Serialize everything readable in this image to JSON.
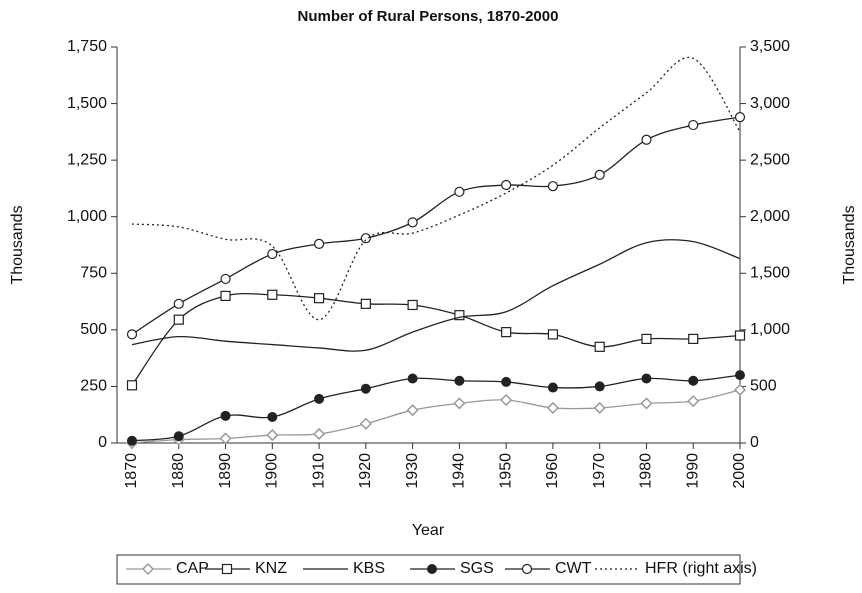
{
  "chart_data": {
    "type": "line",
    "title": "Number of Rural Persons, 1870-2000",
    "xlabel": "Year",
    "ylabel": "Thousands",
    "y2label": "Thousands",
    "categories": [
      "1870",
      "1880",
      "1890",
      "1900",
      "1910",
      "1920",
      "1930",
      "1940",
      "1950",
      "1960",
      "1970",
      "1980",
      "1990",
      "2000"
    ],
    "ylim": [
      0,
      1750
    ],
    "yticks": [
      0,
      250,
      500,
      750,
      {
        "value": 1000,
        "label": "1,000"
      },
      {
        "value": 1250,
        "label": "1,250"
      },
      {
        "value": 1500,
        "label": "1,500"
      },
      {
        "value": 1750,
        "label": "1,750"
      }
    ],
    "y2lim": [
      0,
      3500
    ],
    "y2ticks": [
      0,
      500,
      {
        "value": 1000,
        "label": "1,000"
      },
      {
        "value": 1500,
        "label": "1,500"
      },
      {
        "value": 2000,
        "label": "2,000"
      },
      {
        "value": 2500,
        "label": "2,500"
      },
      {
        "value": 3000,
        "label": "3,000"
      },
      {
        "value": 3500,
        "label": "3,500"
      }
    ],
    "series": [
      {
        "name": "CAP",
        "color": "#999999",
        "marker": "diamond",
        "values": [
          0,
          15,
          20,
          35,
          40,
          85,
          145,
          175,
          190,
          155,
          155,
          175,
          185,
          235
        ]
      },
      {
        "name": "KNZ",
        "color": "#222222",
        "marker": "square",
        "values": [
          255,
          545,
          650,
          655,
          640,
          615,
          610,
          565,
          490,
          480,
          425,
          460,
          460,
          475
        ]
      },
      {
        "name": "KBS",
        "color": "#222222",
        "marker": "none",
        "values": [
          435,
          470,
          450,
          435,
          420,
          410,
          490,
          555,
          580,
          695,
          790,
          885,
          890,
          815
        ]
      },
      {
        "name": "SGS",
        "color": "#222222",
        "marker": "filled-circle",
        "values": [
          10,
          30,
          120,
          115,
          195,
          240,
          285,
          275,
          270,
          245,
          250,
          285,
          275,
          300
        ]
      },
      {
        "name": "CWT",
        "color": "#222222",
        "marker": "circle",
        "values": [
          480,
          615,
          725,
          835,
          880,
          905,
          975,
          1110,
          1140,
          1135,
          1185,
          1340,
          1405,
          1440
        ]
      },
      {
        "name": "HFR (right axis)",
        "color": "#222222",
        "marker": "none",
        "dash": "dotted",
        "axis": "y2",
        "values": [
          1935,
          1910,
          1800,
          1740,
          1090,
          1795,
          1855,
          2015,
          2210,
          2455,
          2785,
          3095,
          3400,
          2750
        ]
      }
    ]
  }
}
